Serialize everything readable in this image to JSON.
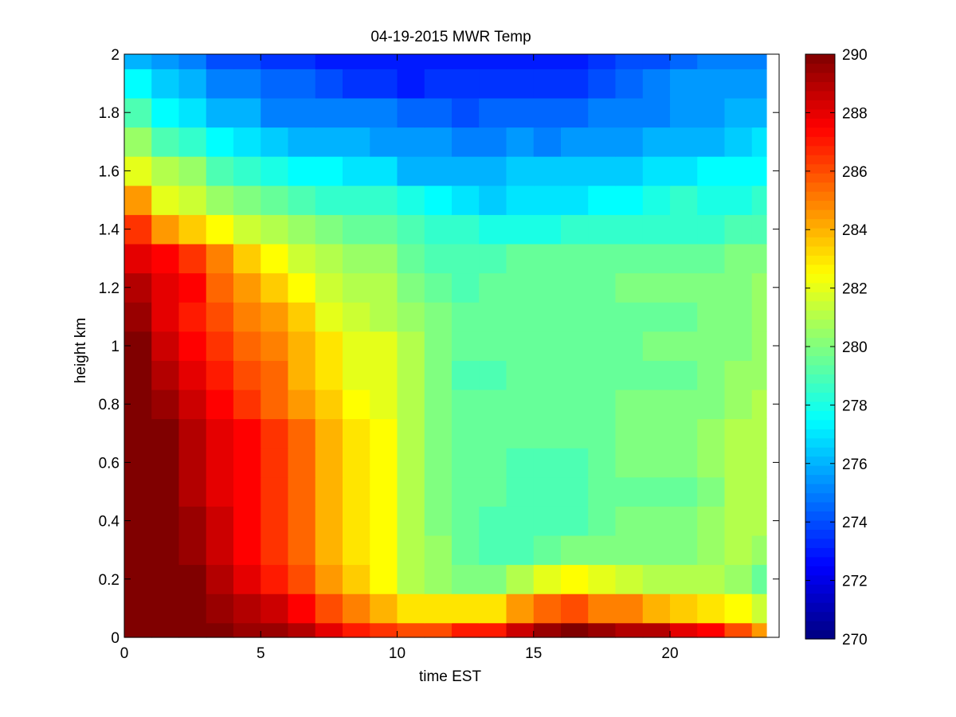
{
  "chart_data": {
    "type": "heatmap",
    "title": "04-19-2015 MWR Temp",
    "xlabel": "time EST",
    "ylabel": "height km",
    "xlim": [
      0,
      24
    ],
    "ylim": [
      0,
      2
    ],
    "x_ticks": [
      "0",
      "5",
      "10",
      "15",
      "20"
    ],
    "y_ticks": [
      "0",
      "0.2",
      "0.4",
      "0.6",
      "0.8",
      "1",
      "1.2",
      "1.4",
      "1.6",
      "1.8",
      "2"
    ],
    "x": [
      0.5,
      1.5,
      2.5,
      3.5,
      4.5,
      5.5,
      6.5,
      7.5,
      8.5,
      9.5,
      10.5,
      11.5,
      12.5,
      13.5,
      14.5,
      15.5,
      16.5,
      17.5,
      18.5,
      19.5,
      20.5,
      21.5,
      22.5,
      23.5
    ],
    "y_bins": [
      0,
      0.05,
      0.15,
      0.25,
      0.35,
      0.45,
      0.55,
      0.65,
      0.75,
      0.85,
      0.95,
      1.05,
      1.15,
      1.25,
      1.35,
      1.45,
      1.55,
      1.65,
      1.75,
      1.85,
      1.95,
      2.0
    ],
    "values": [
      [
        290,
        290,
        290,
        290,
        289.5,
        289.5,
        289,
        288,
        287,
        286.5,
        286,
        286,
        287,
        287,
        288.5,
        289.5,
        290,
        289.5,
        289,
        289,
        288,
        287.5,
        286,
        284.5
      ],
      [
        290,
        290,
        290,
        289.5,
        289,
        288.5,
        287.5,
        286,
        285,
        284,
        283,
        283,
        283,
        283,
        284.5,
        285.5,
        286,
        285,
        285,
        284,
        283.5,
        283,
        282.5,
        281.5
      ],
      [
        290,
        290,
        290,
        289,
        288,
        287,
        286,
        284.5,
        283.5,
        282.5,
        281,
        280.5,
        280,
        280,
        281,
        282,
        282.5,
        282,
        281.5,
        281,
        281,
        281,
        280.5,
        279.5
      ],
      [
        290,
        290,
        289.5,
        288.5,
        287.5,
        286.5,
        285.5,
        284,
        283,
        282.5,
        281,
        280.5,
        279.5,
        279,
        279,
        279.5,
        280,
        280,
        280,
        280,
        280,
        280.5,
        281,
        280.5
      ],
      [
        290,
        290,
        289.5,
        288.5,
        287.5,
        286.5,
        285.5,
        284,
        283,
        282.5,
        281,
        280,
        279.5,
        279,
        279,
        279,
        279,
        279.5,
        280,
        280,
        280,
        280.5,
        281,
        281
      ],
      [
        290,
        290,
        289,
        288,
        287.5,
        286.5,
        285.5,
        284,
        283,
        282.5,
        281,
        280,
        279.5,
        279.5,
        279,
        279,
        279,
        279.5,
        279.5,
        279.5,
        279.5,
        280,
        281,
        281
      ],
      [
        290,
        290,
        289,
        288,
        287.5,
        286.5,
        285.5,
        284,
        283,
        282.5,
        281,
        280,
        279.5,
        279.5,
        279,
        279,
        279,
        279.5,
        280,
        280,
        280,
        280.5,
        281,
        281
      ],
      [
        290,
        290,
        289,
        288,
        287.5,
        286.5,
        285.5,
        284,
        283,
        282.5,
        281,
        280,
        279.5,
        279.5,
        279.5,
        279.5,
        279.5,
        279.5,
        280,
        280,
        280,
        280.5,
        281,
        281
      ],
      [
        290,
        289.5,
        288.5,
        287.5,
        286.5,
        285.5,
        284.5,
        283.5,
        282.5,
        282,
        281,
        280,
        279.5,
        279.5,
        279.5,
        279.5,
        279.5,
        279.5,
        280,
        280,
        280,
        280,
        280.5,
        281
      ],
      [
        290,
        289,
        288,
        287,
        286,
        285.5,
        284,
        283,
        282,
        282,
        281,
        280,
        279,
        279,
        279.5,
        279.5,
        279.5,
        279.5,
        279.5,
        279.5,
        279.5,
        280,
        280.5,
        280.5
      ],
      [
        290,
        288.5,
        287.5,
        286.5,
        285.5,
        285,
        284,
        283,
        282,
        282,
        281,
        280,
        279.5,
        279.5,
        279.5,
        279.5,
        279.5,
        279.5,
        279.5,
        280,
        280,
        280,
        280,
        280.5
      ],
      [
        289.5,
        288,
        287,
        286,
        285,
        284.5,
        283.5,
        282,
        281.5,
        281,
        280.5,
        280,
        279.5,
        279.5,
        279.5,
        279.5,
        279.5,
        279.5,
        279.5,
        279.5,
        279.5,
        280,
        280,
        280.5
      ],
      [
        289,
        288,
        287.5,
        285.5,
        284.5,
        283.5,
        282.5,
        281.5,
        281,
        281,
        280,
        279.5,
        279,
        279.5,
        279.5,
        279.5,
        279.5,
        279.5,
        280,
        280,
        280,
        280,
        280,
        280.5
      ],
      [
        288,
        287.5,
        286.5,
        285,
        283.5,
        282.5,
        281.5,
        281,
        280.5,
        280.5,
        279.5,
        279,
        279,
        279,
        279.5,
        279.5,
        279.5,
        279.5,
        279.5,
        279.5,
        279.5,
        279.5,
        280,
        280
      ],
      [
        286.5,
        284.5,
        283.5,
        282.5,
        281.5,
        281,
        280.5,
        280,
        279.5,
        279.5,
        279,
        278.5,
        278.5,
        278,
        278,
        278,
        278.5,
        278.5,
        278.5,
        278.5,
        278.5,
        278.5,
        279,
        279
      ],
      [
        284.5,
        282,
        281.5,
        280.5,
        280,
        279.5,
        279,
        278.5,
        278.5,
        278.5,
        278,
        277.5,
        277,
        276.5,
        277,
        277,
        277,
        277.5,
        277.5,
        278,
        278.5,
        278,
        278,
        278.5
      ],
      [
        282,
        281,
        280.5,
        279,
        278.5,
        278,
        277.5,
        277.5,
        277,
        277,
        276,
        276,
        276,
        276,
        276.5,
        276.5,
        276.5,
        276.5,
        276.5,
        277,
        277,
        277.5,
        277.5,
        277.5
      ],
      [
        280.5,
        279,
        278.5,
        277.5,
        277,
        276.5,
        276,
        276,
        276,
        275.5,
        275.5,
        275.5,
        275,
        275,
        275.5,
        275,
        275.5,
        275.5,
        275.5,
        276,
        276,
        276,
        276.5,
        277
      ],
      [
        279,
        277.5,
        277,
        276,
        276,
        275,
        275,
        275,
        275,
        275,
        274.5,
        274.5,
        274,
        274.5,
        274.5,
        274.5,
        274.5,
        275,
        275,
        275,
        275.5,
        275.5,
        276,
        276
      ],
      [
        277.5,
        276.5,
        276,
        275,
        275,
        274.5,
        274.5,
        274,
        273.5,
        273.5,
        273,
        273.5,
        273.5,
        273.5,
        273.5,
        273.5,
        273.5,
        274,
        274.5,
        275,
        275.5,
        275.5,
        275.5,
        275.5
      ],
      [
        276,
        275.5,
        275,
        274,
        274,
        273.5,
        273.5,
        273,
        273,
        273,
        273,
        273,
        273,
        273,
        273,
        273,
        273,
        273.5,
        274,
        274,
        274.5,
        275,
        275,
        275
      ]
    ],
    "colorbar": {
      "min": 270,
      "max": 290,
      "ticks": [
        "270",
        "272",
        "274",
        "276",
        "278",
        "280",
        "282",
        "284",
        "286",
        "288",
        "290"
      ],
      "colormap": "jet"
    },
    "grid": false,
    "legend": "none"
  }
}
